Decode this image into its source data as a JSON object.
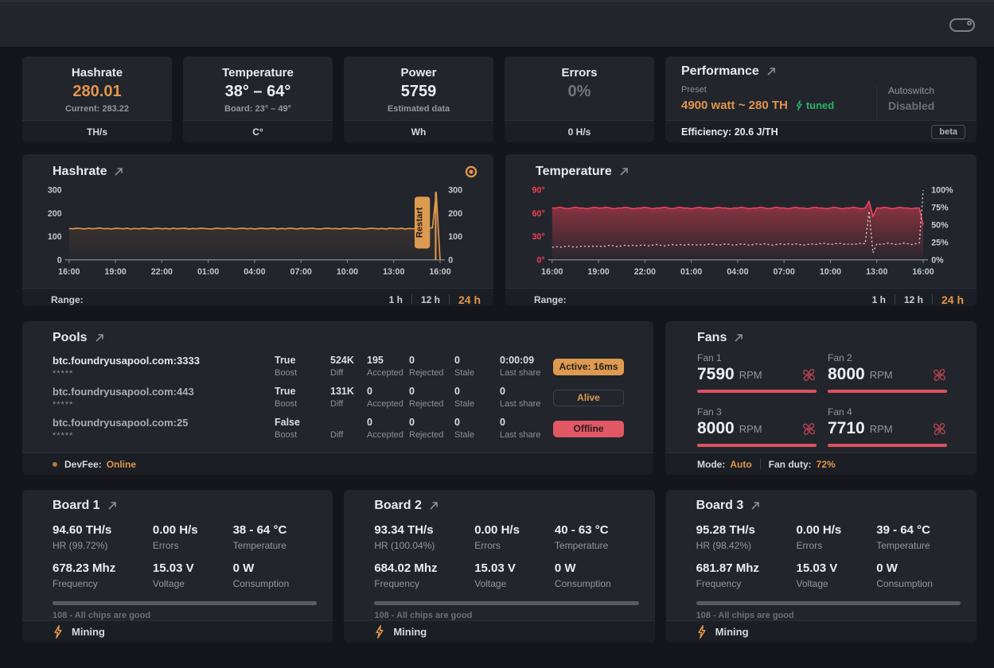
{
  "colors": {
    "accent_orange": "#e2964a",
    "green": "#27b468",
    "status_red": "#df5863",
    "chart_red": "#ee4156"
  },
  "icons": {
    "toggle": "switch-pill",
    "external_link": "arrow-up-right",
    "record": "concentric-circles",
    "fan": "pinwheel",
    "bolt": "lightning",
    "devfee": "dot"
  },
  "stat_cards": [
    {
      "title": "Hashrate",
      "value": "280.01",
      "sub": "Current: 283.22",
      "unit": "TH/s"
    },
    {
      "title": "Temperature",
      "value": "38° – 64°",
      "sub": "Board: 23° – 49°",
      "unit": "C°"
    },
    {
      "title": "Power",
      "value": "5759",
      "sub": "Estimated data",
      "unit": "Wh"
    },
    {
      "title": "Errors",
      "value": "0%",
      "sub": "",
      "unit": "0 H/s"
    }
  ],
  "performance": {
    "title": "Performance",
    "preset_label": "Preset",
    "preset_value": "4900 watt ~ 280 TH",
    "tuned_label": "tuned",
    "autoswitch_label": "Autoswitch",
    "autoswitch_value": "Disabled",
    "efficiency_label": "Efficiency:",
    "efficiency_value": "20.6 J/TH",
    "beta_badge": "beta"
  },
  "range": {
    "label": "Range:",
    "options": [
      "1 h",
      "12 h",
      "24 h"
    ],
    "active": "24 h"
  },
  "chart_data": [
    {
      "id": "hashrate",
      "type": "area",
      "title": "Hashrate",
      "x_ticks": [
        "16:00",
        "19:00",
        "22:00",
        "01:00",
        "04:00",
        "07:00",
        "10:00",
        "13:00",
        "16:00"
      ],
      "y_ticks_left": [
        "300",
        "200",
        "100",
        "0"
      ],
      "y_ticks_right": [
        "300",
        "200",
        "100",
        "0"
      ],
      "tick_color_left": "#c3c7ce",
      "tick_color_right": "#c3c7ce",
      "annotation": {
        "label": "Restart",
        "x_frac": 0.988,
        "color": "#dd9a51"
      },
      "series": [
        {
          "name": "hashrate_ths",
          "color": "#e2964a",
          "ylim": [
            0,
            300
          ],
          "fill": true,
          "values": [
            135,
            134,
            136,
            135,
            133,
            136,
            134,
            135,
            137,
            134,
            135,
            133,
            136,
            135,
            134,
            136,
            133,
            135,
            134,
            136,
            135,
            133,
            135,
            136,
            134,
            135,
            133,
            136,
            134,
            135,
            136,
            133,
            135,
            134,
            136,
            135,
            134,
            133,
            136,
            135,
            134,
            136,
            135,
            133,
            135,
            136,
            134,
            135,
            133,
            135,
            136,
            134,
            135,
            136,
            133,
            135,
            134,
            136,
            135,
            133,
            136,
            134,
            135,
            136,
            134,
            133,
            135,
            136,
            134,
            135,
            133,
            136,
            135,
            134,
            136,
            135,
            133,
            134,
            136,
            135,
            134,
            135,
            133,
            136,
            135,
            134,
            136,
            133,
            135,
            134,
            136,
            135,
            134,
            136,
            138,
            290,
            0
          ]
        }
      ]
    },
    {
      "id": "temperature",
      "type": "line",
      "title": "Temperature",
      "x_ticks": [
        "16:00",
        "19:00",
        "22:00",
        "01:00",
        "04:00",
        "07:00",
        "10:00",
        "13:00",
        "16:00"
      ],
      "y_ticks_left": [
        "90°",
        "60°",
        "30°",
        "0°"
      ],
      "y_ticks_right": [
        "100%",
        "75%",
        "50%",
        "25%",
        "0%"
      ],
      "tick_color_left": "#ee4156",
      "tick_color_right": "#c9ccd3",
      "series": [
        {
          "name": "board_temp_c",
          "color": "#ee4156",
          "ylim": [
            0,
            90
          ],
          "fill": true,
          "values": [
            67,
            67,
            68,
            67,
            66,
            67,
            68,
            67,
            67,
            66,
            67,
            68,
            67,
            67,
            68,
            67,
            66,
            67,
            67,
            68,
            67,
            66,
            67,
            67,
            68,
            67,
            66,
            67,
            67,
            68,
            67,
            66,
            67,
            68,
            67,
            67,
            66,
            67,
            68,
            67,
            67,
            66,
            67,
            68,
            67,
            67,
            66,
            67,
            67,
            68,
            67,
            66,
            67,
            67,
            68,
            67,
            66,
            67,
            68,
            67,
            67,
            66,
            67,
            68,
            67,
            67,
            66,
            67,
            68,
            67,
            67,
            66,
            67,
            68,
            67,
            66,
            67,
            67,
            68,
            67,
            66,
            67,
            76,
            56,
            67,
            67,
            68,
            67,
            66,
            67,
            68,
            67,
            67,
            66,
            67,
            67,
            45
          ]
        },
        {
          "name": "fan_duty_pct",
          "color": "#c9ccd3",
          "ylim": [
            0,
            100
          ],
          "dashed": true,
          "values": [
            18,
            19,
            18,
            19,
            20,
            19,
            18,
            19,
            20,
            19,
            20,
            19,
            20,
            19,
            20,
            21,
            20,
            19,
            20,
            21,
            20,
            21,
            20,
            21,
            21,
            20,
            21,
            22,
            21,
            20,
            21,
            22,
            21,
            22,
            21,
            22,
            22,
            21,
            22,
            21,
            22,
            23,
            22,
            21,
            22,
            23,
            22,
            21,
            22,
            23,
            22,
            21,
            22,
            23,
            22,
            23,
            22,
            21,
            22,
            23,
            22,
            23,
            22,
            23,
            22,
            21,
            22,
            23,
            22,
            23,
            24,
            23,
            22,
            23,
            24,
            23,
            22,
            23,
            22,
            23,
            24,
            23,
            70,
            10,
            23,
            22,
            23,
            24,
            23,
            22,
            23,
            24,
            23,
            22,
            23,
            24,
            100
          ]
        }
      ]
    }
  ],
  "pools": {
    "title": "Pools",
    "labels": {
      "boost": "Boost",
      "diff": "Diff",
      "accepted": "Accepted",
      "rejected": "Rejected",
      "stale": "Stale",
      "last_share": "Last share"
    },
    "rows": [
      {
        "url": "btc.foundryusapool.com:3333",
        "user": "*****",
        "boost": "True",
        "diff": "524K",
        "accepted": "195",
        "rejected": "0",
        "stale": "0",
        "last_share": "0:00:09",
        "status": "Active: 16ms"
      },
      {
        "url": "btc.foundryusapool.com:443",
        "user": "*****",
        "boost": "True",
        "diff": "131K",
        "accepted": "0",
        "rejected": "0",
        "stale": "0",
        "last_share": "0",
        "status": "Alive"
      },
      {
        "url": "btc.foundryusapool.com:25",
        "user": "*****",
        "boost": "False",
        "diff": "",
        "accepted": "0",
        "rejected": "0",
        "stale": "0",
        "last_share": "0",
        "status": "Offline"
      }
    ],
    "footer": {
      "devfee_label": "DevFee:",
      "devfee_status": "Online"
    }
  },
  "fans": {
    "title": "Fans",
    "items": [
      {
        "label": "Fan 1",
        "rpm": "7590",
        "unit": "RPM"
      },
      {
        "label": "Fan 2",
        "rpm": "8000",
        "unit": "RPM"
      },
      {
        "label": "Fan 3",
        "rpm": "8000",
        "unit": "RPM"
      },
      {
        "label": "Fan 4",
        "rpm": "7710",
        "unit": "RPM"
      }
    ],
    "footer": {
      "mode_label": "Mode:",
      "mode_value": "Auto",
      "duty_label": "Fan duty:",
      "duty_value": "72%"
    }
  },
  "boards": [
    {
      "title": "Board 1",
      "stats": [
        {
          "value": "94.60 TH/s",
          "label": "HR (99.72%)"
        },
        {
          "value": "0.00 H/s",
          "label": "Errors"
        },
        {
          "value": "38 - 64 °C",
          "label": "Temperature"
        },
        {
          "value": "678.23 Mhz",
          "label": "Frequency"
        },
        {
          "value": "15.03 V",
          "label": "Voltage"
        },
        {
          "value": "0 W",
          "label": "Consumption"
        }
      ],
      "chips": "108 - All chips are good",
      "footer": "Mining"
    },
    {
      "title": "Board 2",
      "stats": [
        {
          "value": "93.34 TH/s",
          "label": "HR (100.04%)"
        },
        {
          "value": "0.00 H/s",
          "label": "Errors"
        },
        {
          "value": "40 - 63 °C",
          "label": "Temperature"
        },
        {
          "value": "684.02 Mhz",
          "label": "Frequency"
        },
        {
          "value": "15.03 V",
          "label": "Voltage"
        },
        {
          "value": "0 W",
          "label": "Consumption"
        }
      ],
      "chips": "108 - All chips are good",
      "footer": "Mining"
    },
    {
      "title": "Board 3",
      "stats": [
        {
          "value": "95.28 TH/s",
          "label": "HR (98.42%)"
        },
        {
          "value": "0.00 H/s",
          "label": "Errors"
        },
        {
          "value": "39 - 64 °C",
          "label": "Temperature"
        },
        {
          "value": "681.87 Mhz",
          "label": "Frequency"
        },
        {
          "value": "15.03 V",
          "label": "Voltage"
        },
        {
          "value": "0 W",
          "label": "Consumption"
        }
      ],
      "chips": "108 - All chips are good",
      "footer": "Mining"
    }
  ]
}
